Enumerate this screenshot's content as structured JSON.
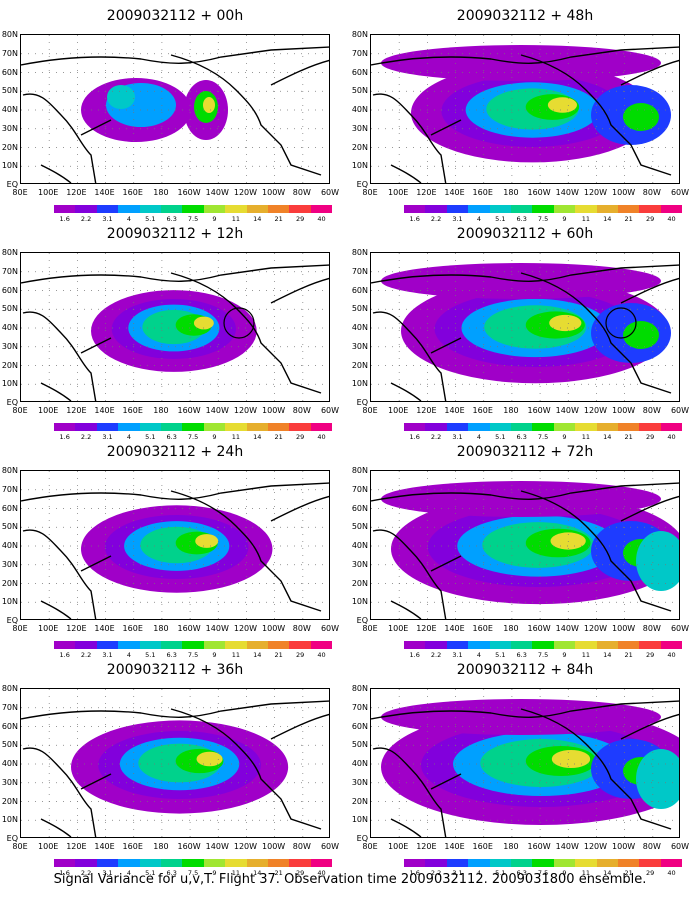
{
  "panels": [
    {
      "title": "2009032112 + 00h",
      "lead": 0
    },
    {
      "title": "2009032112 + 48h",
      "lead": 48
    },
    {
      "title": "2009032112 + 12h",
      "lead": 12
    },
    {
      "title": "2009032112 + 60h",
      "lead": 60
    },
    {
      "title": "2009032112 + 24h",
      "lead": 24
    },
    {
      "title": "2009032112 + 72h",
      "lead": 72
    },
    {
      "title": "2009032112 + 36h",
      "lead": 36
    },
    {
      "title": "2009032112 + 84h",
      "lead": 84
    }
  ],
  "lat_labels": [
    "80N",
    "70N",
    "60N",
    "50N",
    "40N",
    "30N",
    "20N",
    "10N",
    "EQ"
  ],
  "lon_labels": [
    "80E",
    "100E",
    "120E",
    "140E",
    "160E",
    "180",
    "160W",
    "140W",
    "120W",
    "100W",
    "80W",
    "60W"
  ],
  "colorbar": {
    "levels": [
      "1.6",
      "2.2",
      "3.1",
      "4",
      "5.1",
      "6.3",
      "7.5",
      "9",
      "11",
      "14",
      "21",
      "29",
      "40"
    ],
    "colors": [
      "#a000c8",
      "#8200dc",
      "#1e3cff",
      "#00a0ff",
      "#00c8c8",
      "#00d28c",
      "#00dc00",
      "#a0e632",
      "#e6dc32",
      "#e6af2d",
      "#f08228",
      "#fa3c3c",
      "#f00082"
    ]
  },
  "caption": "Signal Variance for u,v,T. Flight 37. Observation time 2009032112. 2009031800 ensemble."
}
